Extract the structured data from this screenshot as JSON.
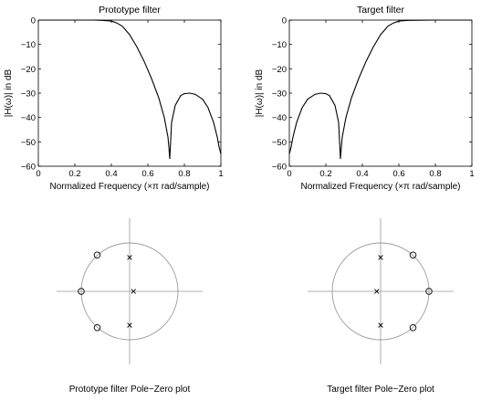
{
  "chart_data": [
    {
      "type": "line",
      "title": "Prototype filter",
      "xlabel": "Normalized Frequency  (×π rad/sample)",
      "ylabel": "|H(ω)| in dB",
      "xlim": [
        0,
        1
      ],
      "ylim": [
        -60,
        0
      ],
      "xticks": [
        0,
        0.2,
        0.4,
        0.6,
        0.8,
        1
      ],
      "xtick_labels": [
        "0",
        "0.2",
        "0.4",
        "0.6",
        "0.8",
        "1"
      ],
      "yticks": [
        0,
        -10,
        -20,
        -30,
        -40,
        -50,
        -60
      ],
      "ytick_labels": [
        "0",
        "−10",
        "−20",
        "−30",
        "−40",
        "−50",
        "−60"
      ],
      "grid": false,
      "series": [
        {
          "x": [
            0,
            0.2,
            0.3,
            0.35,
            0.4,
            0.43,
            0.46,
            0.5,
            0.54,
            0.58,
            0.62,
            0.66,
            0.69,
            0.71,
            0.715,
            0.72,
            0.73,
            0.75,
            0.78,
            0.8,
            0.83,
            0.86,
            0.9,
            0.93,
            0.96,
            0.98,
            0.99,
            1.0
          ],
          "y": [
            0,
            0,
            0,
            -0.1,
            -0.4,
            -1.2,
            -2.5,
            -6,
            -11,
            -17,
            -24,
            -32,
            -40,
            -48,
            -52,
            -57,
            -42,
            -35,
            -31,
            -30.2,
            -30,
            -30.5,
            -32.5,
            -36,
            -42,
            -48,
            -52,
            -55
          ]
        }
      ]
    },
    {
      "type": "line",
      "title": "Target filter",
      "xlabel": "Normalized Frequency  (×π rad/sample)",
      "ylabel": "|H(ω)| in dB",
      "xlim": [
        0,
        1
      ],
      "ylim": [
        -60,
        0
      ],
      "xticks": [
        0,
        0.2,
        0.4,
        0.6,
        0.8,
        1
      ],
      "xtick_labels": [
        "0",
        "0.2",
        "0.4",
        "0.6",
        "0.8",
        "1"
      ],
      "yticks": [
        0,
        -10,
        -20,
        -30,
        -40,
        -50,
        -60
      ],
      "ytick_labels": [
        "0",
        "−10",
        "−20",
        "−30",
        "−40",
        "−50",
        "−60"
      ],
      "grid": false,
      "series": [
        {
          "x": [
            0,
            0.01,
            0.02,
            0.04,
            0.07,
            0.1,
            0.14,
            0.17,
            0.2,
            0.22,
            0.25,
            0.27,
            0.28,
            0.285,
            0.29,
            0.31,
            0.34,
            0.38,
            0.42,
            0.46,
            0.5,
            0.54,
            0.57,
            0.6,
            0.65,
            0.8,
            1.0
          ],
          "y": [
            -55,
            -52,
            -48,
            -42,
            -36,
            -32.5,
            -30.5,
            -30,
            -30.2,
            -31,
            -35,
            -42,
            -57,
            -52,
            -48,
            -40,
            -32,
            -24,
            -17,
            -11,
            -6,
            -2.5,
            -1.2,
            -0.4,
            -0.1,
            0,
            0
          ]
        }
      ]
    },
    {
      "type": "scatter",
      "title": "",
      "caption": "Prototype filter Pole−Zero plot",
      "unit_circle": true,
      "zeros": [
        {
          "re": -0.67,
          "im": 0.75
        },
        {
          "re": -1.0,
          "im": 0.0
        },
        {
          "re": -0.67,
          "im": -0.75
        }
      ],
      "poles": [
        {
          "re": 0.0,
          "im": 0.7
        },
        {
          "re": 0.08,
          "im": 0.0
        },
        {
          "re": 0.0,
          "im": -0.7
        }
      ]
    },
    {
      "type": "scatter",
      "title": "",
      "caption": "Target filter Pole−Zero plot",
      "unit_circle": true,
      "zeros": [
        {
          "re": 0.67,
          "im": 0.75
        },
        {
          "re": 1.0,
          "im": 0.0
        },
        {
          "re": 0.67,
          "im": -0.75
        }
      ],
      "poles": [
        {
          "re": 0.0,
          "im": 0.7
        },
        {
          "re": -0.08,
          "im": 0.0
        },
        {
          "re": 0.0,
          "im": -0.7
        }
      ]
    }
  ]
}
